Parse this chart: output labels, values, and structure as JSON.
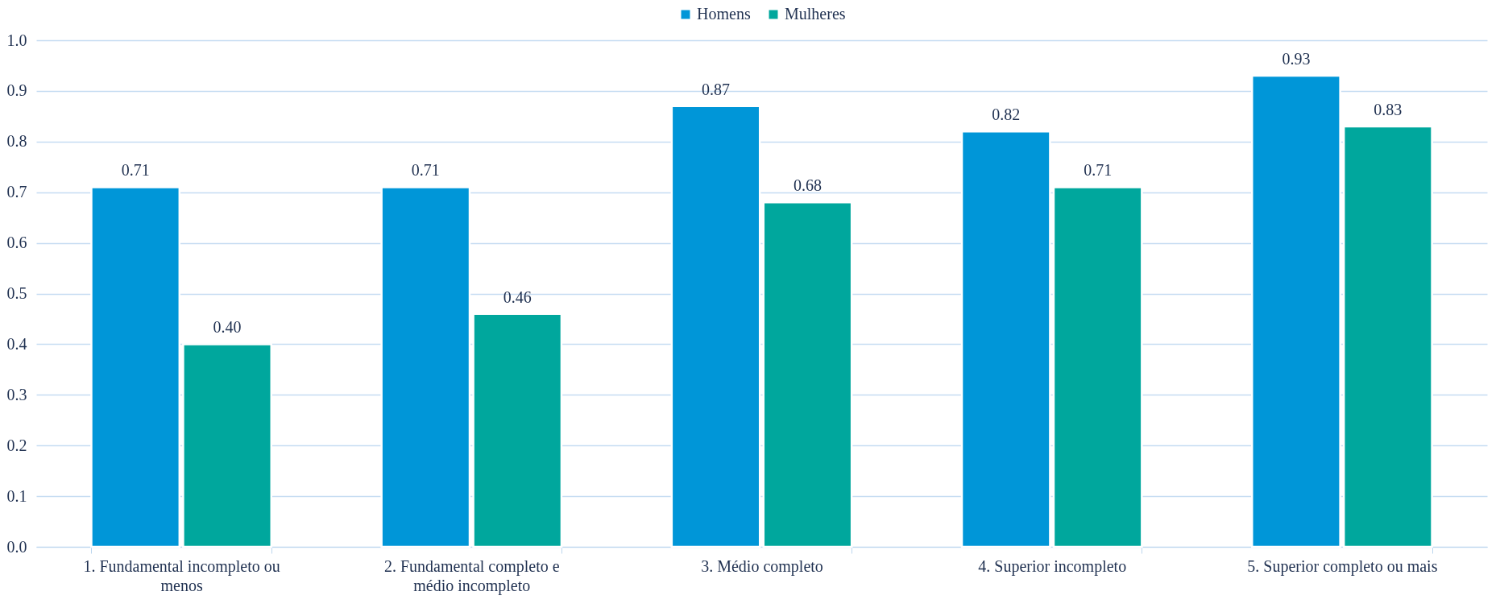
{
  "chart_data": {
    "type": "bar",
    "categories": [
      "1. Fundamental incompleto ou menos",
      "2. Fundamental completo e médio incompleto",
      "3. Médio completo",
      "4. Superior incompleto",
      "5. Superior completo ou mais"
    ],
    "series": [
      {
        "name": "Homens",
        "color": "#0096d8",
        "values": [
          0.71,
          0.71,
          0.87,
          0.82,
          0.93
        ],
        "value_labels": [
          "0.71",
          "0.71",
          "0.87",
          "0.82",
          "0.93"
        ]
      },
      {
        "name": "Mulheres",
        "color": "#00a79d",
        "values": [
          0.4,
          0.46,
          0.68,
          0.71,
          0.83
        ],
        "value_labels": [
          "0.40",
          "0.46",
          "0.68",
          "0.71",
          "0.83"
        ]
      }
    ],
    "ylim": [
      0,
      1
    ],
    "yticks": [
      {
        "value": 0,
        "label": "0.0"
      },
      {
        "value": 0.1,
        "label": "0.1"
      },
      {
        "value": 0.2,
        "label": "0.2"
      },
      {
        "value": 0.3,
        "label": "0.3"
      },
      {
        "value": 0.4,
        "label": "0.4"
      },
      {
        "value": 0.5,
        "label": "0.5"
      },
      {
        "value": 0.6,
        "label": "0.6"
      },
      {
        "value": 0.7,
        "label": "0.7"
      },
      {
        "value": 0.8,
        "label": "0.8"
      },
      {
        "value": 0.9,
        "label": "0.9"
      },
      {
        "value": 1,
        "label": "1.0"
      }
    ],
    "grid": "y",
    "legend": "top"
  }
}
